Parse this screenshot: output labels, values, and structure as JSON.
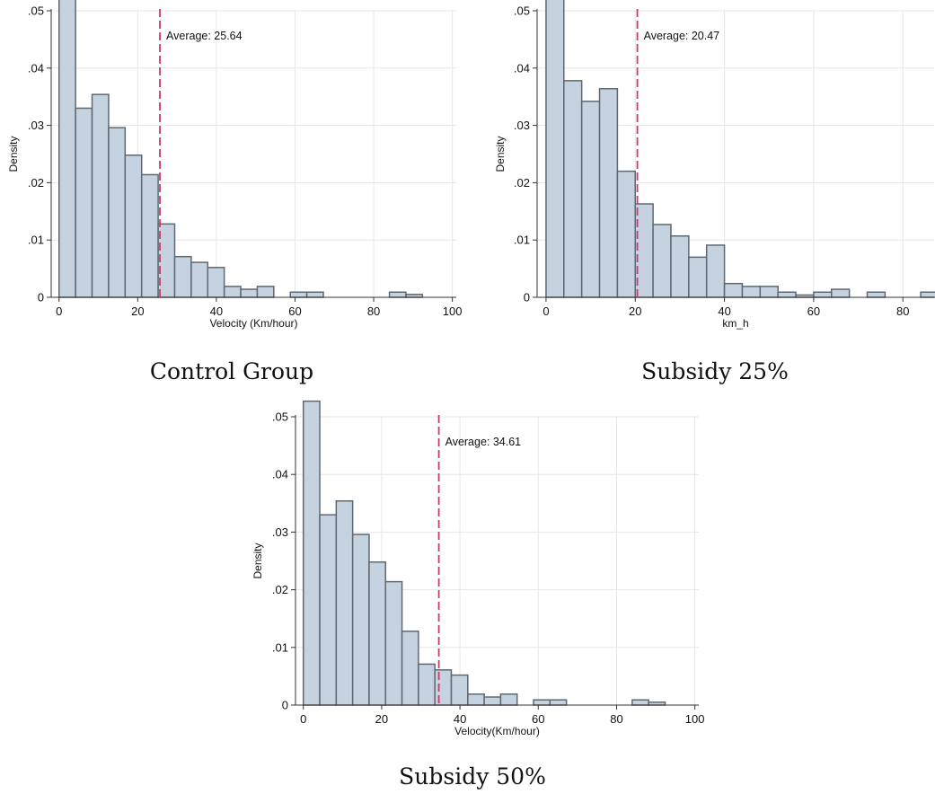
{
  "chart_data": [
    {
      "type": "bar",
      "caption": "Control Group",
      "xlabel": "Velocity (Km/hour)",
      "ylabel": "Density",
      "xlim": [
        -2,
        101
      ],
      "ylim": [
        0,
        0.05
      ],
      "xticks": [
        0,
        20,
        40,
        60,
        80,
        100
      ],
      "xtick_labels": [
        "0",
        "20",
        "40",
        "60",
        "80",
        "100"
      ],
      "yticks": [
        0,
        0.01,
        0.02,
        0.03,
        0.04,
        0.05
      ],
      "ytick_labels": [
        "0",
        ".01",
        ".02",
        ".03",
        ".04",
        ".05"
      ],
      "grid": true,
      "bin_width": 4.2,
      "bin_start": 0,
      "values": [
        0.0527,
        0.033,
        0.0354,
        0.0296,
        0.0248,
        0.0214,
        0.0128,
        0.0071,
        0.0061,
        0.0052,
        0.0019,
        0.0014,
        0.0019,
        0,
        0.0009,
        0.0009,
        0,
        0,
        0,
        0,
        0.0009,
        0.0005
      ],
      "average": 25.64,
      "average_label": "Average: 25.64",
      "bar_color": "#c5d3e0",
      "bar_edge": "#5f6870",
      "avg_line_color": "#c8396e"
    },
    {
      "type": "bar",
      "caption": "Subsidy 25%",
      "xlabel": "km_h",
      "ylabel": "Density",
      "xlim": [
        -2,
        87
      ],
      "ylim": [
        0,
        0.05
      ],
      "xticks": [
        0,
        20,
        40,
        60,
        80
      ],
      "xtick_labels": [
        "0",
        "20",
        "40",
        "60",
        "80"
      ],
      "yticks": [
        0,
        0.01,
        0.02,
        0.03,
        0.04,
        0.05
      ],
      "ytick_labels": [
        "0",
        ".01",
        ".02",
        ".03",
        ".04",
        ".05"
      ],
      "grid": true,
      "bin_width": 4.0,
      "bin_start": 0,
      "values": [
        0.0522,
        0.0378,
        0.0342,
        0.0364,
        0.022,
        0.0163,
        0.0127,
        0.0107,
        0.007,
        0.0091,
        0.0024,
        0.0019,
        0.0019,
        0.0009,
        0.0004,
        0.0009,
        0.0014,
        0,
        0.0009,
        0,
        0,
        0.0009
      ],
      "average": 20.47,
      "average_label": "Average: 20.47",
      "bar_color": "#c5d3e0",
      "bar_edge": "#5f6870",
      "avg_line_color": "#c8396e"
    },
    {
      "type": "bar",
      "caption": "Subsidy 50%",
      "xlabel": "Velocity(Km/hour)",
      "ylabel": "Density",
      "xlim": [
        -2,
        101
      ],
      "ylim": [
        0,
        0.05
      ],
      "xticks": [
        0,
        20,
        40,
        60,
        80,
        100
      ],
      "xtick_labels": [
        "0",
        "20",
        "40",
        "60",
        "80",
        "100"
      ],
      "yticks": [
        0,
        0.01,
        0.02,
        0.03,
        0.04,
        0.05
      ],
      "ytick_labels": [
        "0",
        ".01",
        ".02",
        ".03",
        ".04",
        ".05"
      ],
      "grid": true,
      "bin_width": 4.2,
      "bin_start": 0,
      "values": [
        0.0527,
        0.033,
        0.0354,
        0.0296,
        0.0248,
        0.0214,
        0.0128,
        0.0071,
        0.0061,
        0.0052,
        0.0019,
        0.0014,
        0.0019,
        0,
        0.0009,
        0.0009,
        0,
        0,
        0,
        0,
        0.0009,
        0.0005
      ],
      "average": 34.61,
      "average_label": "Average: 34.61",
      "bar_color": "#c5d3e0",
      "bar_edge": "#5f6870",
      "avg_line_color": "#c8396e"
    }
  ]
}
